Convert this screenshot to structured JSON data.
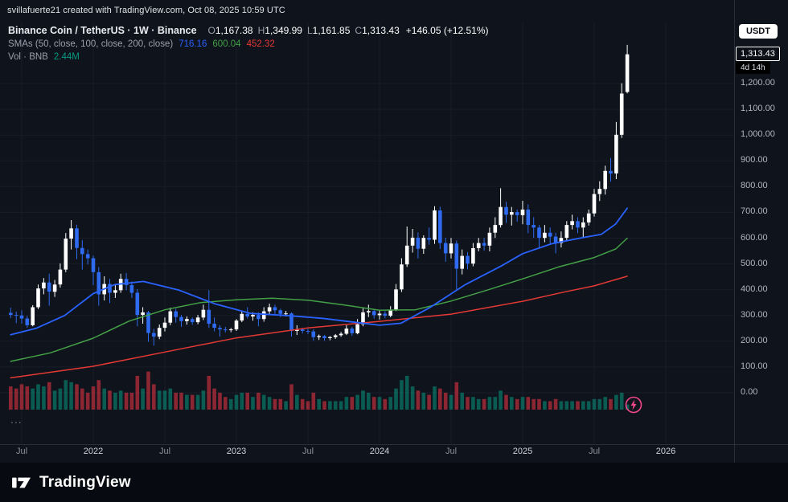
{
  "attribution": "svillafuerte21 created with TradingView.com, Oct 08, 2025 10:59 UTC",
  "legend": {
    "symbol_title": "Binance Coin / TetherUS · 1W · Binance",
    "ohlc": [
      {
        "label": "O",
        "value": "1,167.38"
      },
      {
        "label": "H",
        "value": "1,349.99"
      },
      {
        "label": "L",
        "value": "1,161.85"
      },
      {
        "label": "C",
        "value": "1,313.43"
      }
    ],
    "change": "+146.05 (+12.51%)",
    "sma_label": "SMAs (50, close, 100, close, 200, close)",
    "sma_values": [
      {
        "value": "716.16",
        "color": "#2962ff"
      },
      {
        "value": "600.04",
        "color": "#43a047"
      },
      {
        "value": "452.32",
        "color": "#e53935"
      }
    ],
    "volume_label": "Vol · BNB",
    "volume_value": "2.44M",
    "more": "..."
  },
  "price_scale": {
    "currency_button": "USDT",
    "last_price_label": "1,313.43",
    "countdown": "4d 14h",
    "ticks": [
      {
        "label": "1,200.00",
        "value": 1200
      },
      {
        "label": "1,100.00",
        "value": 1100
      },
      {
        "label": "1,000.00",
        "value": 1000
      },
      {
        "label": "900.00",
        "value": 900
      },
      {
        "label": "800.00",
        "value": 800
      },
      {
        "label": "700.00",
        "value": 700
      },
      {
        "label": "600.00",
        "value": 600
      },
      {
        "label": "500.00",
        "value": 500
      },
      {
        "label": "400.00",
        "value": 400
      },
      {
        "label": "300.00",
        "value": 300
      },
      {
        "label": "200.00",
        "value": 200
      },
      {
        "label": "100.00",
        "value": 100
      },
      {
        "label": "0.00",
        "value": 0
      }
    ]
  },
  "time_scale": {
    "labels": [
      {
        "text": "Jul",
        "t": 2021.5,
        "type": "month"
      },
      {
        "text": "2022",
        "t": 2022.0,
        "type": "year"
      },
      {
        "text": "Jul",
        "t": 2022.5,
        "type": "month"
      },
      {
        "text": "2023",
        "t": 2023.0,
        "type": "year"
      },
      {
        "text": "Jul",
        "t": 2023.5,
        "type": "month"
      },
      {
        "text": "2024",
        "t": 2024.0,
        "type": "year"
      },
      {
        "text": "Jul",
        "t": 2024.5,
        "type": "month"
      },
      {
        "text": "2025",
        "t": 2025.0,
        "type": "year"
      },
      {
        "text": "Jul",
        "t": 2025.5,
        "type": "month"
      },
      {
        "text": "2026",
        "t": 2026.0,
        "type": "year"
      }
    ]
  },
  "footer": {
    "brand": "TradingView"
  },
  "chart_data": {
    "type": "candlestick",
    "title": "Binance Coin / TetherUS",
    "symbol": "BNBUSDT",
    "exchange": "Binance",
    "interval": "1W",
    "quote_currency": "USDT",
    "last": {
      "open": 1167.38,
      "high": 1349.99,
      "low": 1161.85,
      "close": 1313.43,
      "change": 146.05,
      "change_pct": 12.51,
      "volume": "2.44M",
      "time_remaining": "4d 14h"
    },
    "y_axis": {
      "min": -80,
      "max": 1437,
      "tick_step": 100,
      "grid": true
    },
    "x_axis": {
      "start": 2021.42,
      "end": 2026.03,
      "grid": true
    },
    "volume_axis_max": 19,
    "colors": {
      "up": "#ffffff",
      "down": "#2e6bf0",
      "volume_up": "#089981",
      "volume_down": "#f23645",
      "grid": "#181d29",
      "border": "#2a2e39",
      "accent_pink": "#f0488d"
    },
    "candles": [
      [
        2021.423,
        310,
        330,
        290,
        302,
        11
      ],
      [
        2021.462,
        302,
        315,
        270,
        300,
        10
      ],
      [
        2021.5,
        300,
        320,
        268,
        288,
        12
      ],
      [
        2021.538,
        288,
        298,
        252,
        262,
        11
      ],
      [
        2021.577,
        262,
        340,
        258,
        332,
        10
      ],
      [
        2021.615,
        332,
        420,
        325,
        405,
        12
      ],
      [
        2021.654,
        405,
        445,
        382,
        428,
        11
      ],
      [
        2021.692,
        428,
        462,
        338,
        392,
        13
      ],
      [
        2021.731,
        392,
        438,
        372,
        420,
        9
      ],
      [
        2021.769,
        420,
        502,
        408,
        478,
        10
      ],
      [
        2021.808,
        478,
        620,
        468,
        598,
        14
      ],
      [
        2021.846,
        598,
        670,
        556,
        638,
        13
      ],
      [
        2021.885,
        638,
        652,
        518,
        562,
        12
      ],
      [
        2021.923,
        562,
        592,
        478,
        538,
        10
      ],
      [
        2021.962,
        538,
        556,
        498,
        522,
        8
      ],
      [
        2022.0,
        522,
        532,
        418,
        468,
        11
      ],
      [
        2022.038,
        468,
        488,
        338,
        382,
        14
      ],
      [
        2022.077,
        382,
        452,
        358,
        422,
        10
      ],
      [
        2022.115,
        422,
        442,
        348,
        388,
        9
      ],
      [
        2022.154,
        388,
        422,
        368,
        398,
        8
      ],
      [
        2022.192,
        398,
        462,
        388,
        442,
        9
      ],
      [
        2022.231,
        442,
        465,
        398,
        418,
        8
      ],
      [
        2022.269,
        418,
        432,
        368,
        388,
        8
      ],
      [
        2022.308,
        388,
        402,
        258,
        302,
        16
      ],
      [
        2022.346,
        302,
        332,
        268,
        312,
        10
      ],
      [
        2022.385,
        312,
        318,
        198,
        232,
        18
      ],
      [
        2022.423,
        232,
        248,
        183,
        218,
        12
      ],
      [
        2022.462,
        218,
        265,
        208,
        252,
        9
      ],
      [
        2022.5,
        252,
        292,
        238,
        272,
        9
      ],
      [
        2022.538,
        272,
        330,
        262,
        316,
        10
      ],
      [
        2022.577,
        316,
        326,
        272,
        294,
        8
      ],
      [
        2022.615,
        294,
        302,
        256,
        278,
        8
      ],
      [
        2022.654,
        278,
        296,
        264,
        286,
        7
      ],
      [
        2022.692,
        286,
        292,
        264,
        274,
        7
      ],
      [
        2022.731,
        274,
        302,
        266,
        292,
        7
      ],
      [
        2022.769,
        292,
        342,
        282,
        322,
        9
      ],
      [
        2022.808,
        322,
        398,
        252,
        268,
        16
      ],
      [
        2022.846,
        268,
        292,
        238,
        252,
        10
      ],
      [
        2022.885,
        252,
        262,
        218,
        246,
        8
      ],
      [
        2022.923,
        246,
        256,
        234,
        244,
        6
      ],
      [
        2022.962,
        244,
        252,
        235,
        246,
        5
      ],
      [
        2023.0,
        246,
        286,
        240,
        280,
        7
      ],
      [
        2023.038,
        280,
        318,
        274,
        306,
        8
      ],
      [
        2023.077,
        306,
        332,
        288,
        296,
        8
      ],
      [
        2023.115,
        296,
        312,
        280,
        302,
        6
      ],
      [
        2023.154,
        302,
        312,
        258,
        286,
        8
      ],
      [
        2023.192,
        286,
        332,
        276,
        316,
        7
      ],
      [
        2023.231,
        316,
        346,
        304,
        332,
        6
      ],
      [
        2023.269,
        332,
        342,
        306,
        320,
        5
      ],
      [
        2023.308,
        320,
        326,
        294,
        306,
        5
      ],
      [
        2023.346,
        306,
        318,
        296,
        308,
        4
      ],
      [
        2023.385,
        308,
        312,
        218,
        240,
        12
      ],
      [
        2023.423,
        240,
        262,
        224,
        246,
        7
      ],
      [
        2023.462,
        246,
        252,
        230,
        240,
        5
      ],
      [
        2023.5,
        240,
        248,
        228,
        238,
        4
      ],
      [
        2023.538,
        238,
        246,
        202,
        216,
        8
      ],
      [
        2023.577,
        216,
        226,
        205,
        220,
        5
      ],
      [
        2023.615,
        220,
        224,
        202,
        212,
        4
      ],
      [
        2023.654,
        212,
        220,
        204,
        216,
        4
      ],
      [
        2023.692,
        216,
        228,
        209,
        223,
        4
      ],
      [
        2023.731,
        223,
        236,
        217,
        229,
        4
      ],
      [
        2023.769,
        229,
        262,
        224,
        249,
        6
      ],
      [
        2023.808,
        249,
        256,
        221,
        231,
        6
      ],
      [
        2023.846,
        231,
        286,
        227,
        266,
        7
      ],
      [
        2023.885,
        266,
        332,
        258,
        312,
        9
      ],
      [
        2023.923,
        312,
        342,
        294,
        317,
        8
      ],
      [
        2023.962,
        317,
        322,
        288,
        301,
        6
      ],
      [
        2024.0,
        301,
        322,
        284,
        307,
        6
      ],
      [
        2024.038,
        307,
        317,
        289,
        299,
        5
      ],
      [
        2024.077,
        299,
        336,
        293,
        323,
        6
      ],
      [
        2024.115,
        323,
        422,
        317,
        401,
        10
      ],
      [
        2024.154,
        401,
        522,
        391,
        498,
        14
      ],
      [
        2024.192,
        498,
        645,
        488,
        571,
        16
      ],
      [
        2024.231,
        571,
        636,
        544,
        602,
        11
      ],
      [
        2024.269,
        602,
        622,
        521,
        559,
        9
      ],
      [
        2024.308,
        559,
        611,
        539,
        601,
        8
      ],
      [
        2024.346,
        601,
        641,
        574,
        594,
        7
      ],
      [
        2024.385,
        594,
        724,
        578,
        708,
        11
      ],
      [
        2024.423,
        708,
        722,
        558,
        581,
        10
      ],
      [
        2024.462,
        581,
        602,
        508,
        541,
        8
      ],
      [
        2024.5,
        541,
        601,
        521,
        579,
        7
      ],
      [
        2024.538,
        579,
        591,
        401,
        481,
        13
      ],
      [
        2024.577,
        481,
        556,
        459,
        531,
        8
      ],
      [
        2024.615,
        531,
        546,
        479,
        501,
        6
      ],
      [
        2024.654,
        501,
        581,
        491,
        561,
        6
      ],
      [
        2024.692,
        561,
        601,
        549,
        581,
        5
      ],
      [
        2024.731,
        581,
        601,
        551,
        571,
        5
      ],
      [
        2024.769,
        571,
        641,
        549,
        621,
        6
      ],
      [
        2024.808,
        621,
        681,
        601,
        651,
        6
      ],
      [
        2024.846,
        651,
        794,
        641,
        721,
        9
      ],
      [
        2024.885,
        721,
        741,
        659,
        691,
        7
      ],
      [
        2024.923,
        691,
        721,
        649,
        701,
        6
      ],
      [
        2024.962,
        701,
        711,
        664,
        689,
        5
      ],
      [
        2025.0,
        689,
        745,
        654,
        711,
        6
      ],
      [
        2025.038,
        711,
        731,
        619,
        651,
        6
      ],
      [
        2025.077,
        651,
        681,
        601,
        641,
        5
      ],
      [
        2025.115,
        641,
        651,
        559,
        601,
        5
      ],
      [
        2025.154,
        601,
        651,
        584,
        621,
        4
      ],
      [
        2025.192,
        621,
        641,
        574,
        606,
        4
      ],
      [
        2025.231,
        606,
        621,
        541,
        581,
        5
      ],
      [
        2025.269,
        581,
        626,
        564,
        601,
        4
      ],
      [
        2025.308,
        601,
        666,
        591,
        651,
        4
      ],
      [
        2025.346,
        651,
        691,
        634,
        666,
        4
      ],
      [
        2025.385,
        666,
        681,
        619,
        641,
        4
      ],
      [
        2025.423,
        641,
        681,
        601,
        661,
        4
      ],
      [
        2025.462,
        661,
        711,
        649,
        696,
        4
      ],
      [
        2025.5,
        696,
        791,
        684,
        771,
        5
      ],
      [
        2025.538,
        771,
        821,
        744,
        791,
        5
      ],
      [
        2025.577,
        791,
        881,
        769,
        861,
        6
      ],
      [
        2025.615,
        861,
        911,
        819,
        851,
        5
      ],
      [
        2025.654,
        851,
        1051,
        829,
        1001,
        7
      ],
      [
        2025.692,
        1001,
        1201,
        989,
        1161,
        8
      ],
      [
        2025.731,
        1167.38,
        1349.99,
        1161.85,
        1313.43,
        2.44
      ]
    ],
    "sma": {
      "sma50": {
        "name": "SMA 50 close",
        "color": "#2962ff",
        "last": 716.16,
        "points": [
          [
            2021.423,
            225
          ],
          [
            2021.6,
            250
          ],
          [
            2021.8,
            300
          ],
          [
            2022.0,
            385
          ],
          [
            2022.15,
            420
          ],
          [
            2022.35,
            432
          ],
          [
            2022.6,
            398
          ],
          [
            2022.85,
            345
          ],
          [
            2023.1,
            308
          ],
          [
            2023.35,
            300
          ],
          [
            2023.6,
            289
          ],
          [
            2023.85,
            272
          ],
          [
            2024.0,
            262
          ],
          [
            2024.15,
            270
          ],
          [
            2024.35,
            330
          ],
          [
            2024.6,
            420
          ],
          [
            2024.85,
            492
          ],
          [
            2025.0,
            540
          ],
          [
            2025.2,
            578
          ],
          [
            2025.4,
            600
          ],
          [
            2025.55,
            615
          ],
          [
            2025.65,
            655
          ],
          [
            2025.731,
            716.16
          ]
        ]
      },
      "sma100": {
        "name": "SMA 100 close",
        "color": "#43a047",
        "last": 600.04,
        "points": [
          [
            2021.423,
            122
          ],
          [
            2021.7,
            155
          ],
          [
            2022.0,
            212
          ],
          [
            2022.25,
            278
          ],
          [
            2022.5,
            322
          ],
          [
            2022.75,
            350
          ],
          [
            2023.0,
            361
          ],
          [
            2023.25,
            367
          ],
          [
            2023.5,
            359
          ],
          [
            2023.75,
            341
          ],
          [
            2024.0,
            320
          ],
          [
            2024.25,
            322
          ],
          [
            2024.5,
            356
          ],
          [
            2024.75,
            398
          ],
          [
            2025.0,
            442
          ],
          [
            2025.25,
            488
          ],
          [
            2025.5,
            525
          ],
          [
            2025.65,
            558
          ],
          [
            2025.731,
            600.04
          ]
        ]
      },
      "sma200": {
        "name": "SMA 200 close",
        "color": "#e53935",
        "last": 452.32,
        "points": [
          [
            2021.423,
            58
          ],
          [
            2022.0,
            103
          ],
          [
            2022.5,
            158
          ],
          [
            2023.0,
            213
          ],
          [
            2023.5,
            252
          ],
          [
            2024.0,
            277
          ],
          [
            2024.5,
            305
          ],
          [
            2025.0,
            355
          ],
          [
            2025.3,
            392
          ],
          [
            2025.5,
            415
          ],
          [
            2025.731,
            452.32
          ]
        ]
      }
    }
  }
}
